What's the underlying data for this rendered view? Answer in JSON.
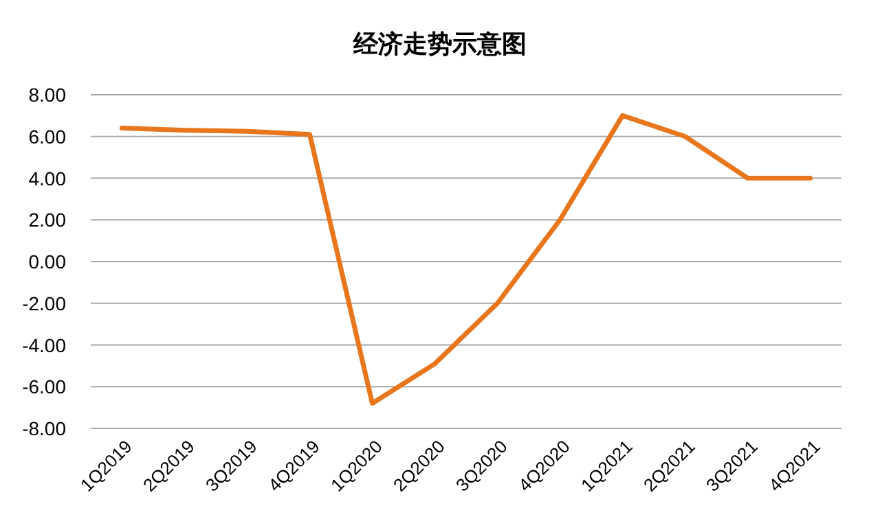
{
  "chart_data": {
    "type": "line",
    "title": "经济走势示意图",
    "categories": [
      "1Q2019",
      "2Q2019",
      "3Q2019",
      "4Q2019",
      "1Q2020",
      "2Q2020",
      "3Q2020",
      "4Q2020",
      "1Q2021",
      "2Q2021",
      "3Q2021",
      "4Q2021"
    ],
    "series": [
      {
        "color": "#e8761c",
        "values": [
          6.4,
          6.3,
          6.25,
          6.1,
          -6.8,
          -4.9,
          -2.0,
          2.0,
          7.0,
          6.0,
          4.0,
          4.0
        ]
      }
    ],
    "ylim": [
      -8,
      8
    ],
    "yticks": [
      {
        "value": 8,
        "label": "8.00"
      },
      {
        "value": 6,
        "label": "6.00"
      },
      {
        "value": 4,
        "label": "4.00"
      },
      {
        "value": 2,
        "label": "2.00"
      },
      {
        "value": 0,
        "label": "0.00"
      },
      {
        "value": -2,
        "label": "-2.00"
      },
      {
        "value": -4,
        "label": "-4.00"
      },
      {
        "value": -6,
        "label": "-6.00"
      },
      {
        "value": -8,
        "label": "-8.00"
      }
    ],
    "grid": "y"
  }
}
